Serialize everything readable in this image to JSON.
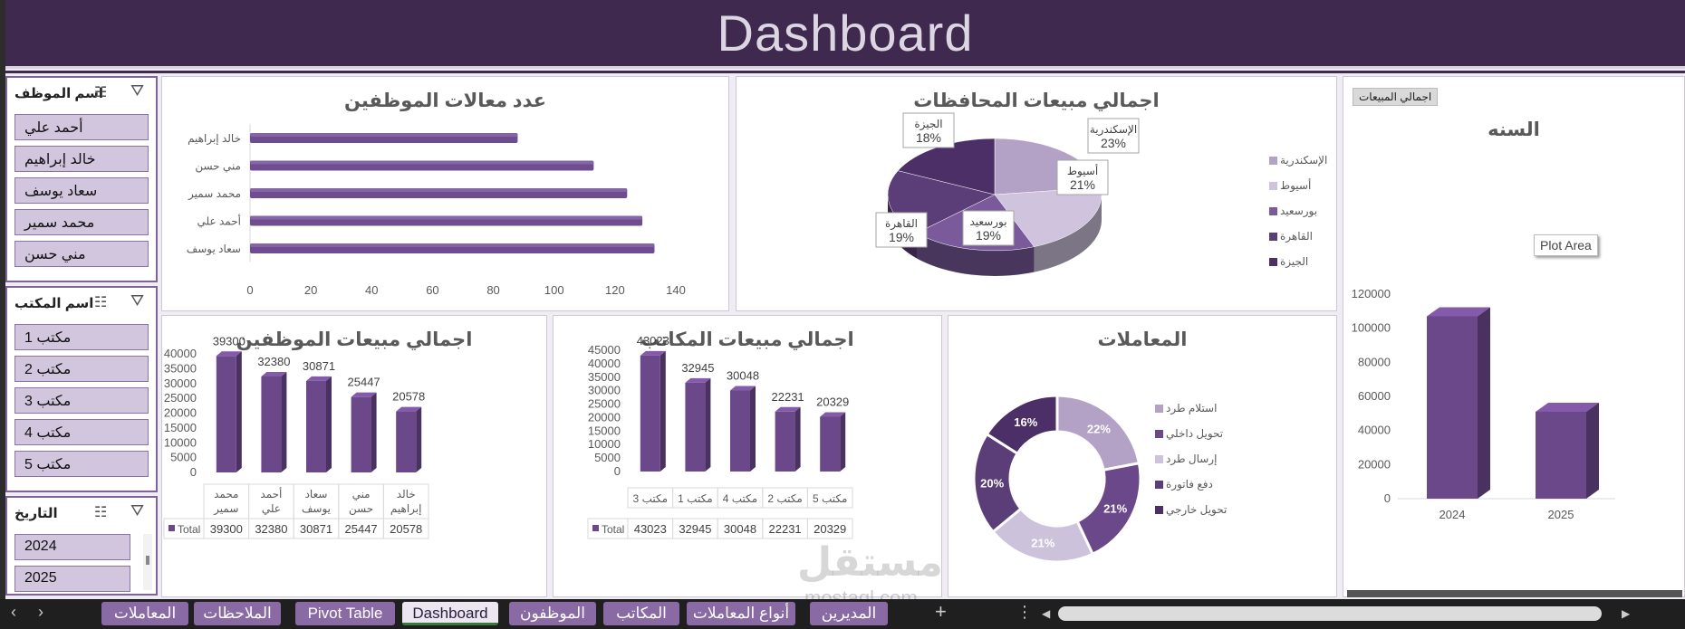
{
  "dashboard": {
    "title": "Dashboard"
  },
  "slicers": [
    {
      "title": "اسم الموظف",
      "items": [
        "أحمد علي",
        "خالد إبراهيم",
        "سعاد يوسف",
        "محمد سمير",
        "مني حسن"
      ]
    },
    {
      "title": "اسم المكتب",
      "items": [
        "مكتب 1",
        "مكتب 2",
        "مكتب 3",
        "مكتب 4",
        "مكتب 5"
      ]
    },
    {
      "title": "التاريخ",
      "items": [
        "2024",
        "2025"
      ]
    }
  ],
  "icons": {
    "multiselect": "multi-select-icon",
    "filter": "clear-filter-icon"
  },
  "colors": {
    "dark": "#40294f",
    "purple": "#6e4c8f",
    "mid": "#8466a6",
    "light": "#b3a2c6",
    "pale": "#d2c6df"
  },
  "chart_data": [
    {
      "id": "emp_count",
      "type": "bar",
      "title": "عدد معالات الموظفين",
      "categories": [
        "سعاد يوسف",
        "أحمد علي",
        "محمد سمير",
        "مني حسن",
        "خالد إبراهيم"
      ],
      "values": [
        133,
        129,
        124,
        113,
        88
      ],
      "xlim": [
        0,
        140
      ],
      "xticks": [
        "0",
        "20",
        "40",
        "60",
        "80",
        "100",
        "120",
        "140"
      ]
    },
    {
      "id": "gov_sales",
      "type": "pie",
      "title": "اجمالي مبيعات المحافظات",
      "labels": [
        "الإسكندرية",
        "أسيوط",
        "بورسعيد",
        "القاهرة",
        "الجيزة"
      ],
      "values": [
        23,
        21,
        19,
        19,
        18
      ],
      "value_labels": [
        "23%",
        "21%",
        "19%",
        "19%",
        "18%"
      ],
      "legend": [
        "الإسكندرية",
        "أسيوط",
        "بورسعيد",
        "القاهرة",
        "الجيزة"
      ]
    },
    {
      "id": "year",
      "type": "bar",
      "title": "السنه",
      "button": "اجمالي المبيعات",
      "categories": [
        "2024",
        "2025"
      ],
      "values": [
        107000,
        51000
      ],
      "ylim": [
        0,
        120000
      ],
      "yticks": [
        "0",
        "20000",
        "40000",
        "60000",
        "80000",
        "100000",
        "120000"
      ],
      "tooltip": "Plot Area"
    },
    {
      "id": "emp_sales",
      "type": "bar",
      "title": "اجمالي مبيعات الموظفين",
      "categories": [
        "محمد سمير",
        "أحمد علي",
        "سعاد يوسف",
        "مني حسن",
        "خالد إبراهيم"
      ],
      "cat_lines": [
        [
          "محمد",
          "سمير"
        ],
        [
          "أحمد",
          "علي"
        ],
        [
          "سعاد",
          "يوسف"
        ],
        [
          "مني",
          "حسن"
        ],
        [
          "خالد",
          "إبراهيم"
        ]
      ],
      "values": [
        39300,
        32380,
        30871,
        25447,
        20578
      ],
      "value_labels": [
        "39300",
        "32380",
        "30871",
        "25447",
        "20578"
      ],
      "ylim": [
        0,
        40000
      ],
      "yticks": [
        "0",
        "5000",
        "10000",
        "15000",
        "20000",
        "25000",
        "30000",
        "35000",
        "40000"
      ],
      "table_label": "Total"
    },
    {
      "id": "office_sales",
      "type": "bar",
      "title": "اجمالي مبيعات المكاتب",
      "categories": [
        "مكتب 3",
        "مكتب 1",
        "مكتب 4",
        "مكتب 2",
        "مكتب 5"
      ],
      "values": [
        43023,
        32945,
        30048,
        22231,
        20329
      ],
      "value_labels": [
        "43023",
        "32945",
        "30048",
        "22231",
        "20329"
      ],
      "ylim": [
        0,
        45000
      ],
      "yticks": [
        "0",
        "5000",
        "10000",
        "15000",
        "20000",
        "25000",
        "30000",
        "35000",
        "40000",
        "45000"
      ],
      "table_label": "Total"
    },
    {
      "id": "transactions",
      "type": "pie",
      "title": "المعاملات",
      "labels": [
        "استلام طرد",
        "تحويل داخلي",
        "إرسال طرد",
        "دفع فاتورة",
        "تحويل خارجي"
      ],
      "values": [
        22,
        21,
        21,
        20,
        16
      ],
      "value_labels": [
        "22%",
        "21%",
        "21%",
        "20%",
        "16%"
      ],
      "legend": [
        "استلام طرد",
        "تحويل داخلي",
        "إرسال طرد",
        "دفع فاتورة",
        "تحويل خارجي"
      ]
    }
  ],
  "tabs": [
    "المعاملات",
    "الملاحظات",
    "Pivot Table",
    "Dashboard",
    "الموظفون",
    "المكاتب",
    "أنواع المعاملات",
    "المديرين"
  ],
  "watermark": {
    "text1": "مستقل",
    "text2": "mostaql.com"
  }
}
